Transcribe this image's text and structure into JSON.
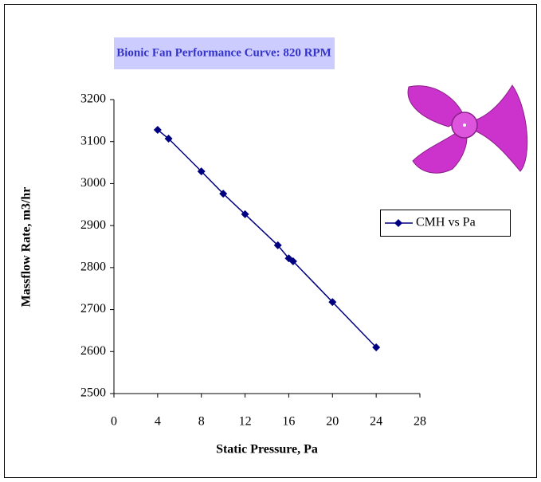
{
  "chart_data": {
    "type": "line",
    "title": "Bionic Fan Performance Curve: 820 RPM",
    "x_label": "Static Pressure, Pa",
    "y_label": "Massflow Rate, m3/hr",
    "x": [
      4,
      5,
      8,
      10,
      12,
      15,
      16,
      16.4,
      20,
      24
    ],
    "series": [
      {
        "name": "CMH vs Pa",
        "color": "#000080",
        "values": [
          3128,
          3107,
          3029,
          2976,
          2927,
          2853,
          2822,
          2815,
          2718,
          2610
        ]
      }
    ],
    "xlim": [
      0,
      28
    ],
    "xticks": [
      0,
      4,
      8,
      12,
      16,
      20,
      24,
      28
    ],
    "ylim": [
      2500,
      3200
    ],
    "yticks": [
      2500,
      2600,
      2700,
      2800,
      2900,
      3000,
      3100,
      3200
    ],
    "marker": "diamond",
    "grid": false,
    "legend": "right"
  }
}
